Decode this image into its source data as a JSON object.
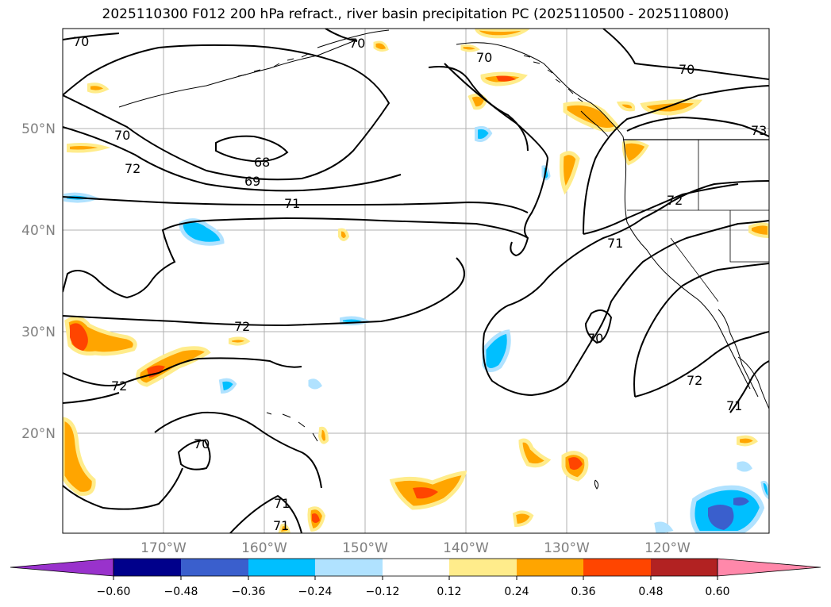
{
  "title": "2025110300 F012 200 hPa refract., river basin precipitation PC (2025110500 - 2025110800)",
  "map": {
    "lon_labels": [
      "170°W",
      "160°W",
      "150°W",
      "140°W",
      "130°W",
      "120°W"
    ],
    "lat_labels": [
      "50°N",
      "40°N",
      "30°N",
      "20°N"
    ],
    "contour_labels": [
      "70",
      "70",
      "70",
      "70",
      "73",
      "68",
      "69",
      "70",
      "72",
      "71",
      "72",
      "71",
      "72",
      "70",
      "72",
      "72",
      "71",
      "70",
      "71",
      "71"
    ],
    "axis_label_color": "#808080"
  },
  "colorbar": {
    "ticks": [
      "−0.60",
      "−0.48",
      "−0.36",
      "−0.24",
      "−0.12",
      "0.12",
      "0.24",
      "0.36",
      "0.48",
      "0.60"
    ],
    "colors": [
      "#9932cc",
      "#00008b",
      "#3a5fcd",
      "#00bfff",
      "#b0e2ff",
      "#ffffff",
      "#ffec8b",
      "#ffa500",
      "#ff4500",
      "#b22222",
      "#ff88aa"
    ]
  }
}
